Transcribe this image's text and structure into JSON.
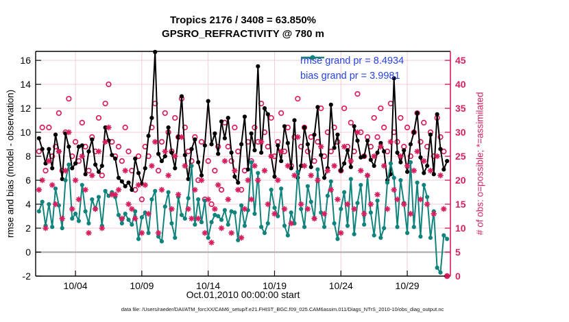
{
  "title": {
    "line1": "Tropics 2176 / 3408 = 63.850%",
    "line2": "GPSRO_REFRACTIVITY @ 780 m"
  },
  "footer_text": "data file: /Users/raeder/DAI/ATM_forcXX/CAM6_setup/f.e21.FHIST_BGC.f09_025.CAM6assim.011/Diags_NTrS_2010-10/obs_diag_output.nc",
  "colors": {
    "crimson": "#d81e5e",
    "teal": "#0f837c",
    "black": "#000000",
    "legend_blue": "#2543e6",
    "grid_pink": "#f2ccd3",
    "zero_gray": "#b3b3b3"
  },
  "chart_data": {
    "type": "line",
    "title": "Tropics 2176 / 3408 = 63.850%  |  GPSRO_REFRACTIVITY @ 780 m",
    "xlabel": "Oct.01,2010 00:00:00 start",
    "ylabel_left": "rmse and bias (model - observation)",
    "ylabel_right": "# of obs: o=possible; *=assimilated",
    "grid": true,
    "x_axis": {
      "start_day": 0.25,
      "step_days": 0.25,
      "min_day": 0,
      "max_day": 31.25,
      "tick_days": [
        3,
        8,
        13,
        18,
        23,
        28
      ],
      "tick_labels": [
        "10/04",
        "10/09",
        "10/14",
        "10/19",
        "10/24",
        "10/29"
      ]
    },
    "y_left": {
      "min": -2,
      "max": 16.75,
      "ticks": [
        -2,
        0,
        2,
        4,
        6,
        8,
        10,
        12,
        14,
        16
      ]
    },
    "y_right": {
      "min": 0,
      "max": 46.875,
      "ticks": [
        0,
        5,
        10,
        15,
        20,
        25,
        30,
        35,
        40,
        45
      ]
    },
    "legend": [
      {
        "label": "rmse grand pr = 8.4934",
        "series": "rmse"
      },
      {
        "label": "bias grand pr = 3.9981",
        "series": "bias"
      }
    ],
    "series": [
      {
        "name": "rmse",
        "axis": "left",
        "style": "line-dot",
        "color": "#000000",
        "values": [
          9.5,
          8.6,
          7.4,
          8.6,
          7.0,
          9.8,
          8.4,
          6.1,
          9.9,
          8.8,
          7.0,
          7.4,
          8.8,
          8.9,
          6.5,
          8.4,
          9.4,
          7.3,
          6.7,
          7.2,
          10.4,
          9.3,
          8.1,
          7.8,
          6.2,
          5.9,
          5.5,
          5.8,
          5.2,
          7.8,
          6.6,
          5.7,
          7.0,
          9.7,
          11.2,
          16.7,
          8.2,
          7.6,
          8.0,
          10.4,
          8.3,
          7.0,
          9.6,
          13.0,
          8.1,
          6.1,
          8.6,
          9.4,
          7.5,
          6.4,
          8.9,
          12.6,
          9.0,
          9.9,
          8.2,
          10.9,
          9.5,
          11.2,
          8.3,
          6.3,
          5.8,
          9.0,
          11.3,
          6.9,
          9.9,
          8.5,
          15.5,
          8.3,
          12.0,
          11.5,
          8.0,
          6.3,
          8.9,
          7.6,
          10.5,
          9.1,
          7.0,
          11.0,
          6.2,
          7.2,
          10.4,
          9.0,
          7.1,
          9.8,
          12.1,
          8.1,
          6.2,
          7.0,
          12.3,
          8.7,
          9.8,
          6.8,
          7.4,
          8.5,
          7.1,
          10.5,
          9.3,
          7.9,
          8.0,
          9.3,
          7.7,
          7.2,
          8.3,
          9.1,
          8.4,
          6.0,
          6.5,
          14.5,
          8.3,
          7.5,
          8.5,
          6.7,
          9.0,
          10.0,
          11.6,
          7.9,
          6.6,
          7.2,
          9.8,
          6.5,
          11.5,
          8.6,
          6.9,
          7.6
        ]
      },
      {
        "name": "bias",
        "axis": "left",
        "style": "line-dot",
        "color": "#0f837c",
        "values": [
          3.4,
          4.2,
          2.2,
          4.0,
          2.1,
          5.3,
          3.9,
          2.0,
          6.0,
          7.3,
          2.8,
          3.2,
          2.6,
          5.6,
          3.4,
          2.4,
          4.4,
          3.6,
          4.6,
          2.2,
          5.1,
          4.7,
          5.0,
          4.6,
          3.1,
          2.4,
          3.2,
          2.7,
          2.3,
          3.4,
          1.1,
          2.9,
          3.3,
          1.6,
          4.4,
          5.1,
          1.3,
          0.9,
          3.8,
          5.0,
          2.4,
          1.2,
          4.6,
          3.1,
          2.8,
          4.5,
          7.2,
          2.3,
          4.4,
          2.5,
          4.3,
          1.2,
          2.5,
          3.1,
          3.0,
          2.7,
          3.5,
          2.3,
          3.4,
          3.3,
          1.0,
          3.9,
          2.2,
          3.5,
          7.5,
          3.2,
          6.6,
          2.1,
          1.6,
          2.4,
          5.2,
          3.7,
          3.0,
          5.3,
          2.2,
          1.4,
          3.3,
          2.4,
          6.7,
          3.6,
          2.1,
          5.5,
          4.2,
          2.8,
          6.9,
          3.3,
          2.1,
          4.7,
          5.9,
          2.4,
          1.1,
          3.6,
          5.0,
          2.2,
          6.1,
          1.5,
          4.1,
          5.6,
          2.3,
          6.4,
          3.3,
          1.4,
          4.3,
          1.2,
          2.0,
          5.8,
          7.4,
          6.2,
          2.1,
          6.0,
          4.1,
          1.6,
          7.5,
          2.1,
          5.8,
          1.3,
          5.6,
          4.6,
          1.2,
          3.4,
          -1.3,
          -1.7,
          1.4,
          1.1
        ]
      },
      {
        "name": "possible",
        "axis": "right",
        "style": "open-circle",
        "color": "#d81e5e",
        "values": [
          26,
          31,
          22,
          31,
          25,
          27,
          34,
          22,
          30,
          37,
          25,
          28,
          24,
          32,
          27,
          22,
          29,
          26,
          33,
          21,
          36,
          40,
          28,
          25,
          27,
          24,
          31,
          26,
          22,
          18,
          25,
          16,
          27,
          25,
          31,
          36,
          22,
          28,
          34,
          30,
          26,
          33,
          29,
          37,
          31,
          26,
          24,
          29,
          20,
          28,
          16,
          24,
          15,
          22,
          27,
          18,
          32,
          27,
          24,
          31,
          26,
          18,
          22,
          28,
          24,
          31,
          28,
          36,
          30,
          27,
          33,
          25,
          28,
          34,
          26,
          31,
          23,
          29,
          37,
          27,
          31,
          26,
          29,
          24,
          28,
          35,
          25,
          30,
          26,
          31,
          28,
          22,
          35,
          27,
          32,
          26,
          38,
          30,
          25,
          29,
          27,
          33,
          29,
          35,
          31,
          26,
          36,
          30,
          28,
          33,
          27,
          31,
          25,
          30,
          34,
          28,
          32,
          27,
          30,
          25,
          33,
          29,
          26,
          0
        ]
      },
      {
        "name": "assimilated",
        "axis": "right",
        "style": "asterisk",
        "color": "#d81e5e",
        "values": [
          18,
          20,
          10,
          24,
          19,
          15,
          26,
          12,
          22,
          30,
          14,
          20,
          16,
          25,
          18,
          9,
          21,
          14,
          26,
          10,
          28,
          31,
          17,
          17,
          18,
          12,
          22,
          15,
          14,
          12,
          19,
          9,
          19,
          13,
          23,
          28,
          9,
          18,
          26,
          21,
          14,
          25,
          17,
          29,
          23,
          14,
          12,
          18,
          12,
          20,
          9,
          16,
          7,
          14,
          19,
          10,
          24,
          16,
          9,
          22,
          18,
          8,
          14,
          20,
          16,
          23,
          20,
          28,
          22,
          15,
          25,
          13,
          20,
          26,
          14,
          23,
          11,
          21,
          29,
          15,
          23,
          14,
          21,
          12,
          20,
          27,
          13,
          22,
          18,
          23,
          16,
          9,
          27,
          15,
          24,
          14,
          30,
          22,
          13,
          21,
          15,
          25,
          17,
          27,
          23,
          14,
          28,
          18,
          16,
          25,
          15,
          23,
          13,
          22,
          26,
          16,
          24,
          15,
          22,
          13,
          25,
          21,
          14,
          0
        ]
      }
    ]
  }
}
